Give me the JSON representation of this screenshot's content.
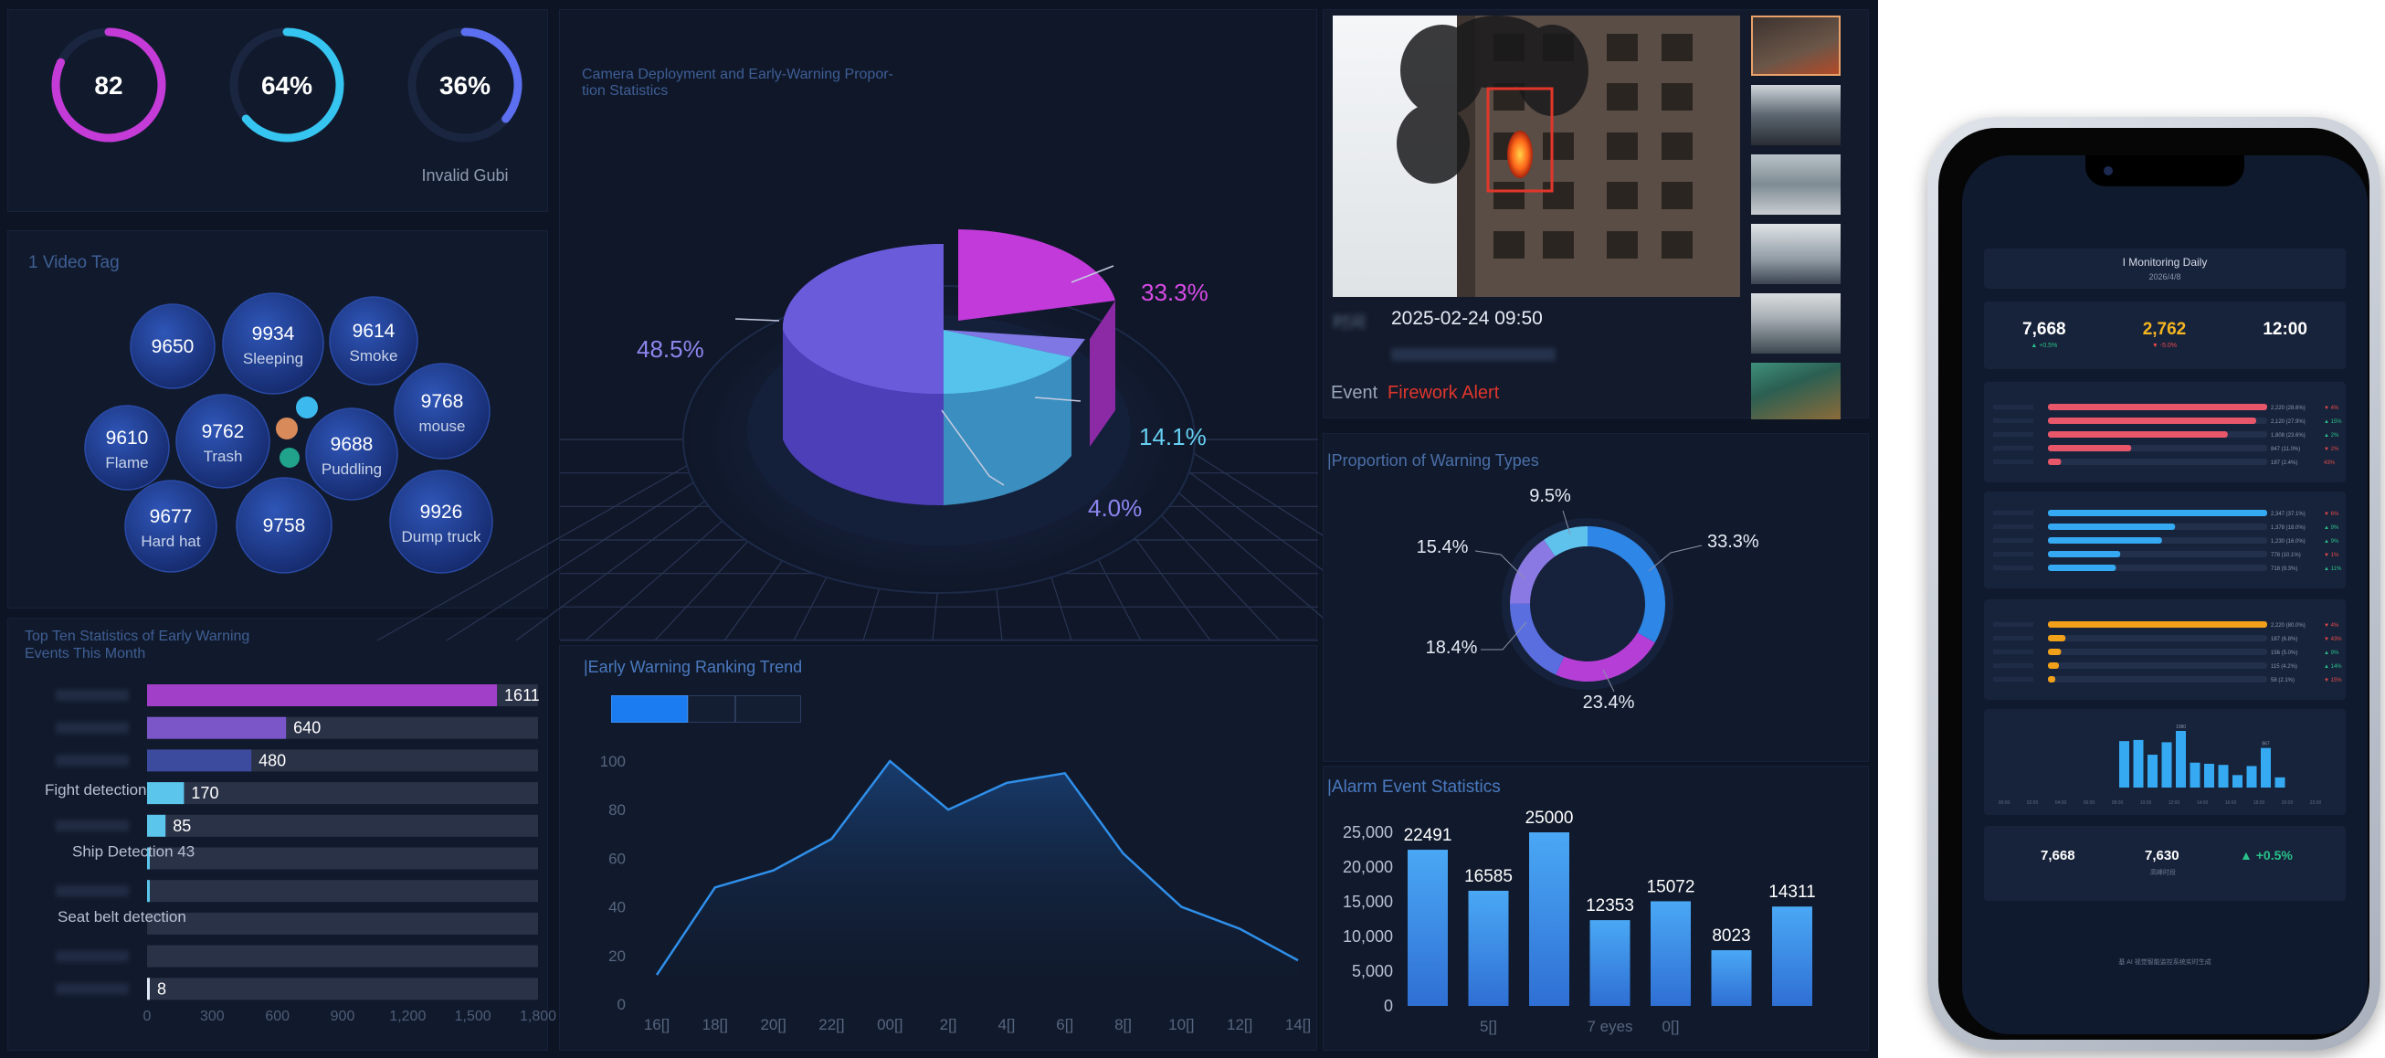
{
  "gauges": [
    {
      "value_text": "82",
      "fraction": 0.82,
      "color": "#c53bd8",
      "label": ""
    },
    {
      "value_text": "64%",
      "fraction": 0.64,
      "color": "#36c4f0",
      "label": ""
    },
    {
      "value_text": "36%",
      "fraction": 0.36,
      "color": "#5b6ff0",
      "label": "Invalid Gubi"
    }
  ],
  "video_tag": {
    "title": "1 Video Tag",
    "bubbles": [
      {
        "value": "9650",
        "label": ""
      },
      {
        "value": "9934",
        "label": "Sleeping"
      },
      {
        "value": "9614",
        "label": "Smoke"
      },
      {
        "value": "9768",
        "label": "mouse"
      },
      {
        "value": "9610",
        "label": "Flame"
      },
      {
        "value": "9762",
        "label": "Trash"
      },
      {
        "value": "9688",
        "label": "Puddling"
      },
      {
        "value": "9677",
        "label": "Hard hat"
      },
      {
        "value": "9758",
        "label": ""
      },
      {
        "value": "9926",
        "label": "Dump truck"
      }
    ]
  },
  "top_ten": {
    "title_line1": "Top Ten Statistics of Early Warning",
    "title_line2": "Events This Month",
    "rows": [
      {
        "label": "",
        "value": 1611,
        "value_text": "1611",
        "color": "#a13fc9"
      },
      {
        "label": "",
        "value": 640,
        "value_text": "640",
        "color": "#7a56c8"
      },
      {
        "label": "",
        "value": 480,
        "value_text": "480",
        "color": "#3d4b9e"
      },
      {
        "label": "Fight detection",
        "value": 170,
        "value_text": "170",
        "color": "#5bc5ec"
      },
      {
        "label": "",
        "value": 85,
        "value_text": "85",
        "color": "#5bc5ec"
      },
      {
        "label": "Ship Detection 43",
        "value": 8,
        "value_text": "",
        "color": "#5bc5ec"
      },
      {
        "label": "",
        "value": 3,
        "value_text": "",
        "color": "#5bc5ec"
      },
      {
        "label": "Seat belt detection",
        "value": 0,
        "value_text": "",
        "color": "#5bc5ec"
      },
      {
        "label": "",
        "value": 0,
        "value_text": "",
        "color": "#5bc5ec"
      },
      {
        "label": "",
        "value": 8,
        "value_text": "8",
        "color": "#dfe8f5"
      }
    ],
    "axis_ticks": [
      "0",
      "300",
      "600",
      "900",
      "1,200",
      "1,500",
      "1,800"
    ],
    "max": 1800
  },
  "deployment": {
    "title_line1": "Camera Deployment and Early-Warning Propor-",
    "title_line2": "tion Statistics",
    "slices": [
      {
        "label": "48.5%",
        "value": 48.5,
        "color": "#6a5bdb"
      },
      {
        "label": "33.3%",
        "value": 33.3,
        "color": "#c23ad9"
      },
      {
        "label": "14.1%",
        "value": 14.1,
        "color": "#55c3ec"
      },
      {
        "label": "4.0%",
        "value": 4.0,
        "color": "#7f77e4"
      }
    ]
  },
  "trend": {
    "title": "|Early Warning Ranking Trend",
    "tabs": [
      "",
      "",
      ""
    ],
    "chart_data": {
      "type": "area",
      "x": [
        "16[]",
        "18[]",
        "20[]",
        "22[]",
        "00[]",
        "2[]",
        "4[]",
        "6[]",
        "8[]",
        "10[]",
        "12[]",
        "14[]"
      ],
      "y": [
        12,
        48,
        55,
        68,
        100,
        80,
        91,
        95,
        62,
        40,
        31,
        18
      ],
      "yticks": [
        "0",
        "20",
        "40",
        "60",
        "80",
        "100"
      ],
      "ylim": [
        0,
        100
      ]
    }
  },
  "camera": {
    "time_label": "时间",
    "time_value": "2025-02-24 09:50",
    "event_label": "Event",
    "event_value": "Firework Alert",
    "thumbs": 6
  },
  "warning_types": {
    "title": "|Proportion of Warning Types",
    "chart_data": {
      "type": "pie",
      "slices": [
        {
          "label": "33.3%",
          "value": 33.3,
          "color": "#2e86e6"
        },
        {
          "label": "23.4%",
          "value": 23.4,
          "color": "#b53fd6"
        },
        {
          "label": "18.4%",
          "value": 18.4,
          "color": "#5a6ee0"
        },
        {
          "label": "15.4%",
          "value": 15.4,
          "color": "#8a79e3"
        },
        {
          "label": "9.5%",
          "value": 9.5,
          "color": "#5ec2ec"
        }
      ]
    }
  },
  "alarm": {
    "title": "|Alarm Event Statistics",
    "chart_data": {
      "type": "bar",
      "categories": [
        "",
        "5[]",
        "",
        "7 eyes",
        "0[]",
        "",
        ""
      ],
      "values": [
        22491,
        16585,
        25000,
        12353,
        15072,
        8023,
        14311
      ],
      "labels": [
        "22491",
        "16585",
        "25000",
        "12353",
        "15072",
        "8023",
        "14311"
      ],
      "yticks": [
        "0",
        "5,000",
        "10,000",
        "15,000",
        "20,000",
        "25,000"
      ],
      "ylim": [
        0,
        25000
      ]
    }
  },
  "phone": {
    "title": "I Monitoring Daily",
    "date": "2026/4/8",
    "stats": [
      {
        "value": "7,668",
        "sub": "▲ +0.5%",
        "color": "#ffffff",
        "sub_color": "#28c28a"
      },
      {
        "value": "2,762",
        "sub": "▼ -5.0%",
        "color": "#f5b521",
        "sub_color": "#e84a4a"
      },
      {
        "value": "12:00",
        "sub": "",
        "color": "#ffffff",
        "sub_color": "#ffffff"
      }
    ],
    "group1": {
      "color": "#e8566a",
      "rows": [
        {
          "frac": 1.0,
          "text": "2,220 (28.6%)",
          "delta": "▼ 4%",
          "dc": "#e84a4a"
        },
        {
          "frac": 0.95,
          "text": "2,120 (27.9%)",
          "delta": "▲ 15%",
          "dc": "#28c28a"
        },
        {
          "frac": 0.82,
          "text": "1,808 (23.6%)",
          "delta": "▲ 2%",
          "dc": "#28c28a"
        },
        {
          "frac": 0.38,
          "text": "847 (11.0%)",
          "delta": "▼ 2%",
          "dc": "#e84a4a"
        },
        {
          "frac": 0.06,
          "text": "187 (2.4%)",
          "delta": "43%",
          "dc": "#e84a4a"
        }
      ]
    },
    "group2": {
      "color": "#35a9f2",
      "rows": [
        {
          "frac": 1.0,
          "text": "2,347 (37.1%)",
          "delta": "▼ 6%",
          "dc": "#e84a4a"
        },
        {
          "frac": 0.58,
          "text": "1,378 (18.0%)",
          "delta": "▲ 9%",
          "dc": "#28c28a"
        },
        {
          "frac": 0.52,
          "text": "1,230 (16.0%)",
          "delta": "▲ 9%",
          "dc": "#28c28a"
        },
        {
          "frac": 0.33,
          "text": "778 (10.1%)",
          "delta": "▼ 1%",
          "dc": "#e84a4a"
        },
        {
          "frac": 0.31,
          "text": "718 (9.3%)",
          "delta": "▲ 11%",
          "dc": "#28c28a"
        }
      ]
    },
    "group3": {
      "color": "#f0a019",
      "rows": [
        {
          "frac": 1.0,
          "text": "2,220 (80.0%)",
          "delta": "▼ 4%",
          "dc": "#e84a4a"
        },
        {
          "frac": 0.08,
          "text": "187 (6.8%)",
          "delta": "▼ 43%",
          "dc": "#e84a4a"
        },
        {
          "frac": 0.06,
          "text": "156 (5.0%)",
          "delta": "▲ 9%",
          "dc": "#28c28a"
        },
        {
          "frac": 0.05,
          "text": "115 (4.2%)",
          "delta": "▲ 14%",
          "dc": "#28c28a"
        },
        {
          "frac": 0.03,
          "text": "58 (2.1%)",
          "delta": "▼ 15%",
          "dc": "#e84a4a"
        }
      ]
    },
    "mini_bars": {
      "values": [
        82,
        84,
        58,
        80,
        100,
        44,
        42,
        40,
        22,
        38,
        70,
        18
      ],
      "labels": [
        "",
        "",
        "",
        "",
        "1080",
        "",
        "",
        "",
        "",
        "",
        "867",
        ""
      ],
      "ticks": [
        "00:00",
        "02:00",
        "04:00",
        "06:00",
        "08:00",
        "10:00",
        "12:00",
        "14:00",
        "16:00",
        "18:00",
        "20:00",
        "22:00"
      ]
    },
    "bottom": {
      "a": "7,668",
      "b": "7,630",
      "b_sub": "高峰时段",
      "c": "▲ +0.5%"
    },
    "footer": "基 AI 视觉智能监控系统实时生成"
  }
}
